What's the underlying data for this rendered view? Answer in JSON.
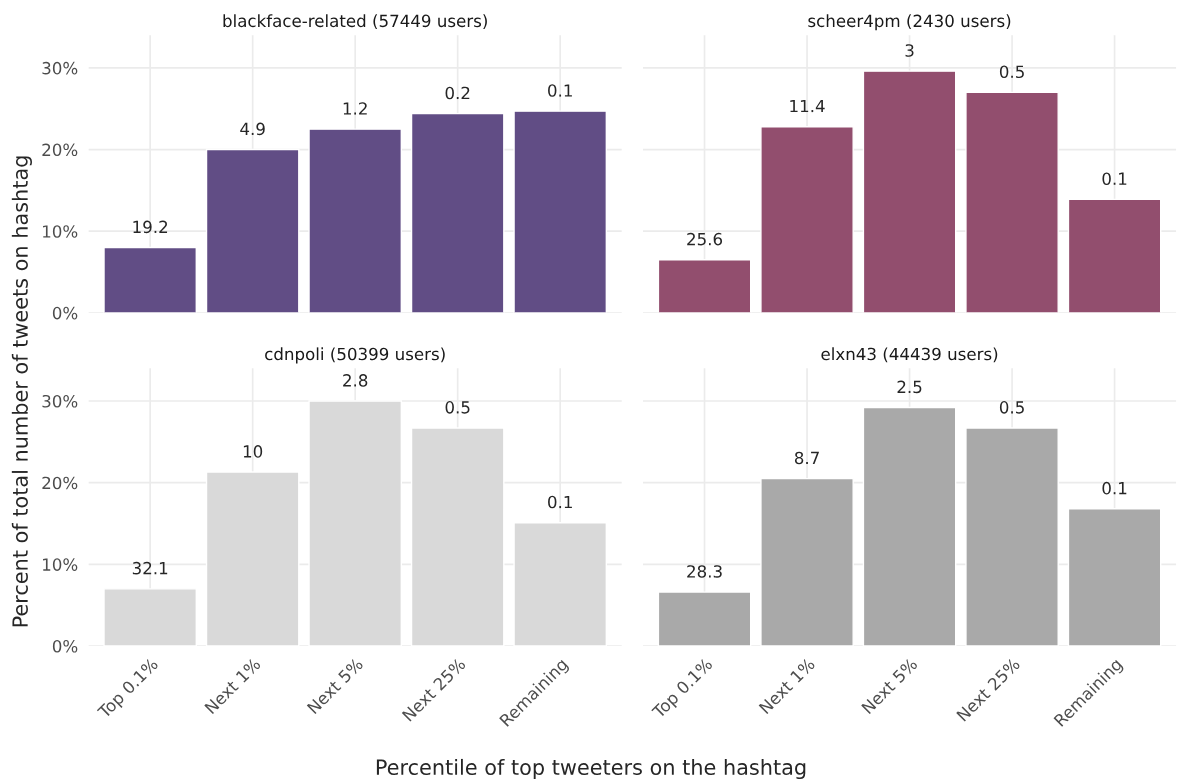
{
  "chart_data": [
    {
      "type": "bar",
      "title": "blackface-related (57449 users)",
      "ylabel": "Percent of total number of tweets on hashtag",
      "categories": [
        "Top 0.1%",
        "Next 1%",
        "Next 5%",
        "Next 25%",
        "Remaining"
      ],
      "values": [
        8.0,
        20.0,
        22.5,
        24.4,
        24.7
      ],
      "annotations": [
        {
          "text": "19.2",
          "x": "Top 0.1%",
          "y": 8.0
        },
        {
          "text": "4.9",
          "x": "Next 1%",
          "y": 20.0
        },
        {
          "text": "1.2",
          "x": "Next 5%",
          "y": 22.5
        },
        {
          "text": "0.2",
          "x": "Next 25%",
          "y": 24.4
        },
        {
          "text": "0.1",
          "x": "Remaining",
          "y": 24.7
        }
      ],
      "color": "#614d85",
      "ylim": [
        0,
        34
      ],
      "yticks": [
        {
          "value": 0,
          "label": "0%"
        },
        {
          "value": 10,
          "label": "10%"
        },
        {
          "value": 20,
          "label": "20%"
        },
        {
          "value": 30,
          "label": "30%"
        }
      ],
      "grid": true,
      "tick_labels": "y"
    },
    {
      "type": "bar",
      "title": "scheer4pm (2430 users)",
      "categories": [
        "Top 0.1%",
        "Next 1%",
        "Next 5%",
        "Next 25%",
        "Remaining"
      ],
      "values": [
        6.5,
        22.8,
        29.6,
        27.0,
        13.9
      ],
      "annotations": [
        {
          "text": "25.6",
          "x": "Top 0.1%",
          "y": 6.5
        },
        {
          "text": "11.4",
          "x": "Next 1%",
          "y": 22.8
        },
        {
          "text": "3",
          "x": "Next 5%",
          "y": 29.6
        },
        {
          "text": "0.5",
          "x": "Next 25%",
          "y": 27.0
        },
        {
          "text": "0.1",
          "x": "Remaining",
          "y": 13.9
        }
      ],
      "color": "#924e6e",
      "ylim": [
        0,
        34
      ],
      "yticks": [
        {
          "value": 0,
          "label": null
        },
        {
          "value": 10,
          "label": null
        },
        {
          "value": 20,
          "label": null
        },
        {
          "value": 30,
          "label": null
        }
      ],
      "grid": true,
      "tick_labels": false
    },
    {
      "type": "bar",
      "title": "cdnpoli (50399 users)",
      "xlabel": "Percentile of top tweeters on the hashtag",
      "categories": [
        "Top 0.1%",
        "Next 1%",
        "Next 5%",
        "Next 25%",
        "Remaining"
      ],
      "values": [
        7.0,
        21.3,
        30.0,
        26.7,
        15.1
      ],
      "annotations": [
        {
          "text": "32.1",
          "x": "Top 0.1%",
          "y": 7.0
        },
        {
          "text": "10",
          "x": "Next 1%",
          "y": 21.3
        },
        {
          "text": "2.8",
          "x": "Next 5%",
          "y": 30.0
        },
        {
          "text": "0.5",
          "x": "Next 25%",
          "y": 26.7
        },
        {
          "text": "0.1",
          "x": "Remaining",
          "y": 15.1
        }
      ],
      "color": "#d9d9d9",
      "ylim": [
        0,
        34
      ],
      "yticks": [
        {
          "value": 0,
          "label": "0%"
        },
        {
          "value": 10,
          "label": "10%"
        },
        {
          "value": 20,
          "label": "20%"
        },
        {
          "value": 30,
          "label": "30%"
        }
      ],
      "grid": true
    },
    {
      "type": "bar",
      "title": "elxn43 (44439 users)",
      "categories": [
        "Top 0.1%",
        "Next 1%",
        "Next 5%",
        "Next 25%",
        "Remaining"
      ],
      "values": [
        6.6,
        20.5,
        29.2,
        26.7,
        16.8
      ],
      "annotations": [
        {
          "text": "28.3",
          "x": "Top 0.1%",
          "y": 6.6
        },
        {
          "text": "8.7",
          "x": "Next 1%",
          "y": 20.5
        },
        {
          "text": "2.5",
          "x": "Next 5%",
          "y": 29.2
        },
        {
          "text": "0.5",
          "x": "Next 25%",
          "y": 26.7
        },
        {
          "text": "0.1",
          "x": "Remaining",
          "y": 16.8
        }
      ],
      "color": "#a9a9a9",
      "ylim": [
        0,
        34
      ],
      "yticks": [
        {
          "value": 0,
          "label": null
        },
        {
          "value": 10,
          "label": null
        },
        {
          "value": 20,
          "label": null
        },
        {
          "value": 30,
          "label": null
        }
      ],
      "grid": true,
      "tick_labels": "x"
    }
  ]
}
